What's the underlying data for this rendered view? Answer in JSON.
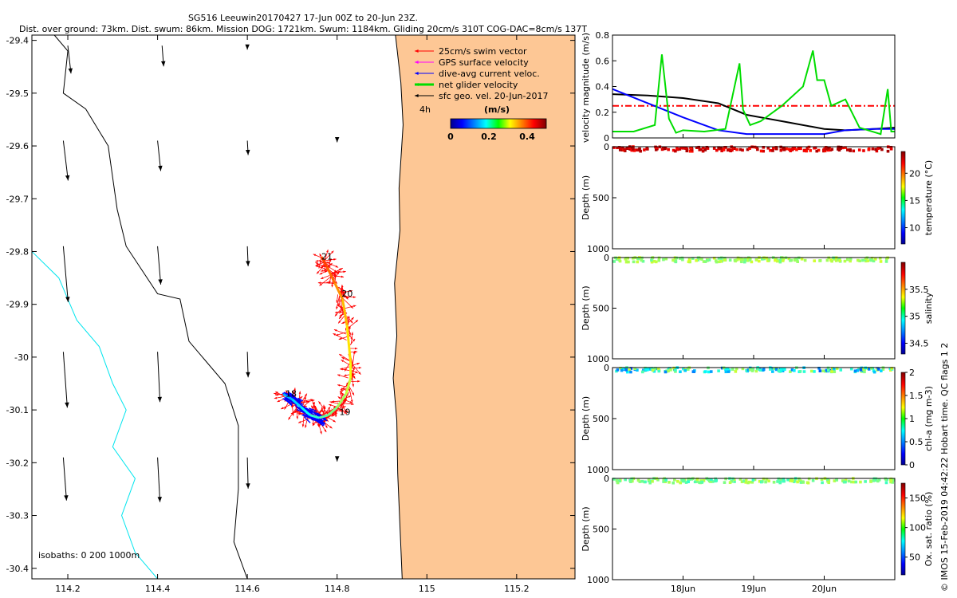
{
  "header": {
    "title": "SG516 Leeuwin20170427 17-Jun 00Z to 20-Jun 23Z.",
    "subtitle": "Dist. over ground: 73km. Dist. swum: 86km. Mission DOG: 1721km. Swum: 1184km. Gliding 20cm/s 310T COG-DAC=8cm/s 137T"
  },
  "credit": "© IMOS 15-Feb-2019 04:42:22 Hobart time. QC flags 1  2",
  "chart_data": [
    {
      "type": "scatter",
      "panel": "map",
      "xlim": [
        114.12,
        115.33
      ],
      "ylim": [
        -30.42,
        -29.39
      ],
      "xticks": [
        114.2,
        114.4,
        114.6,
        114.8,
        115,
        115.2
      ],
      "xtick_labels": [
        "114.2",
        "114.4",
        "114.6",
        "114.8",
        "115",
        "115.2"
      ],
      "yticks": [
        -29.4,
        -29.5,
        -29.6,
        -29.7,
        -29.8,
        -29.9,
        -30,
        -30.1,
        -30.2,
        -30.3,
        -30.4
      ],
      "ytick_labels": [
        "-29.4",
        "-29.5",
        "-29.6",
        "-29.7",
        "-29.8",
        "-29.9",
        "-30",
        "-30.1",
        "-30.2",
        "-30.3",
        "-30.4"
      ],
      "colors": {
        "land": "#fdc795",
        "isobath_0": "#000000",
        "isobath_200": "#000000",
        "isobath_1000": "#00e5ee",
        "swim": "#ff0000",
        "gps": "#ff00ff",
        "dac": "#0000ff",
        "net": "#00dd00"
      },
      "legend": {
        "position": "top-right",
        "entries": [
          "25cm/s swim vector",
          "GPS surface velocity",
          "dive-avg current veloc.",
          "net glider velocity",
          "sfc geo. vel. 20-Jun-2017"
        ],
        "scale_label": "4h"
      },
      "colorbar": {
        "label": "(m/s)",
        "ticks": [
          0,
          0.2,
          0.4
        ],
        "tick_labels": [
          "0",
          "0.2",
          "0.4"
        ],
        "range": [
          0,
          0.5
        ]
      },
      "isobath_label": "isobaths: 0   200  1000m",
      "day_labels": [
        {
          "text": "21",
          "lon": 114.765,
          "lat": -29.815
        },
        {
          "text": "20",
          "lon": 114.81,
          "lat": -29.885
        },
        {
          "text": "18",
          "lon": 114.685,
          "lat": -30.075
        },
        {
          "text": "19",
          "lon": 114.805,
          "lat": -30.11
        }
      ],
      "track": [
        [
          114.68,
          -30.07
        ],
        [
          114.7,
          -30.08
        ],
        [
          114.72,
          -30.095
        ],
        [
          114.74,
          -30.11
        ],
        [
          114.76,
          -30.115
        ],
        [
          114.78,
          -30.11
        ],
        [
          114.8,
          -30.095
        ],
        [
          114.82,
          -30.07
        ],
        [
          114.83,
          -30.04
        ],
        [
          114.83,
          -30.01
        ],
        [
          114.822,
          -29.94
        ],
        [
          114.812,
          -29.89
        ],
        [
          114.795,
          -29.86
        ],
        [
          114.778,
          -29.83
        ],
        [
          114.765,
          -29.81
        ]
      ],
      "geo_vectors": [
        {
          "lon": 114.2,
          "lat": -29.41,
          "u": 0.04,
          "v": -0.35
        },
        {
          "lon": 114.41,
          "lat": -29.41,
          "u": 0.02,
          "v": -0.26
        },
        {
          "lon": 114.6,
          "lat": -29.41,
          "u": 0.0,
          "v": -0.05
        },
        {
          "lon": 114.19,
          "lat": -29.59,
          "u": 0.06,
          "v": -0.5
        },
        {
          "lon": 114.4,
          "lat": -29.59,
          "u": 0.04,
          "v": -0.38
        },
        {
          "lon": 114.6,
          "lat": -29.59,
          "u": 0.01,
          "v": -0.18
        },
        {
          "lon": 114.8,
          "lat": -29.59,
          "u": 0.0,
          "v": -0.02
        },
        {
          "lon": 114.19,
          "lat": -29.79,
          "u": 0.06,
          "v": -0.7
        },
        {
          "lon": 114.4,
          "lat": -29.79,
          "u": 0.04,
          "v": -0.48
        },
        {
          "lon": 114.6,
          "lat": -29.79,
          "u": 0.01,
          "v": -0.25
        },
        {
          "lon": 114.19,
          "lat": -29.99,
          "u": 0.05,
          "v": -0.7
        },
        {
          "lon": 114.4,
          "lat": -29.99,
          "u": 0.03,
          "v": -0.63
        },
        {
          "lon": 114.6,
          "lat": -29.99,
          "u": 0.01,
          "v": -0.32
        },
        {
          "lon": 114.19,
          "lat": -30.19,
          "u": 0.04,
          "v": -0.54
        },
        {
          "lon": 114.4,
          "lat": -30.19,
          "u": 0.03,
          "v": -0.56
        },
        {
          "lon": 114.6,
          "lat": -30.19,
          "u": 0.01,
          "v": -0.39
        },
        {
          "lon": 114.8,
          "lat": -30.19,
          "u": 0.0,
          "v": -0.05
        }
      ]
    },
    {
      "type": "line",
      "panel": "velocity",
      "xlim": [
        17.0,
        21.0
      ],
      "ylim": [
        0,
        0.8
      ],
      "yticks": [
        0,
        0.2,
        0.4,
        0.6,
        0.8
      ],
      "ytick_labels": [
        "0",
        "0.2",
        "0.4",
        "0.6",
        "0.8"
      ],
      "ylabel": "velocity magnitude (m/s)",
      "series": [
        {
          "color": "#ff0000",
          "style": "dashdot",
          "x": [
            17.0,
            21.0
          ],
          "values": [
            0.25,
            0.25
          ]
        },
        {
          "color": "#000000",
          "x": [
            17.0,
            17.5,
            18.0,
            18.5,
            18.9,
            19.2,
            19.5,
            20.0,
            20.3,
            20.7,
            21.0
          ],
          "values": [
            0.34,
            0.33,
            0.31,
            0.27,
            0.18,
            0.15,
            0.12,
            0.07,
            0.06,
            0.07,
            0.08
          ]
        },
        {
          "color": "#0000ff",
          "x": [
            17.0,
            17.5,
            18.0,
            18.5,
            18.9,
            19.2,
            19.5,
            20.0,
            20.3,
            20.7,
            21.0
          ],
          "values": [
            0.38,
            0.27,
            0.16,
            0.06,
            0.03,
            0.03,
            0.03,
            0.03,
            0.06,
            0.07,
            0.07
          ]
        },
        {
          "color": "#00dd00",
          "x": [
            17.0,
            17.3,
            17.6,
            17.7,
            17.8,
            17.9,
            18.0,
            18.3,
            18.6,
            18.8,
            18.85,
            18.95,
            19.1,
            19.4,
            19.7,
            19.84,
            19.9,
            20.0,
            20.1,
            20.3,
            20.5,
            20.8,
            20.9,
            20.95,
            21.0
          ],
          "values": [
            0.05,
            0.05,
            0.1,
            0.65,
            0.15,
            0.04,
            0.06,
            0.05,
            0.07,
            0.58,
            0.22,
            0.1,
            0.13,
            0.25,
            0.4,
            0.68,
            0.45,
            0.45,
            0.25,
            0.3,
            0.08,
            0.03,
            0.38,
            0.05,
            0.05
          ]
        }
      ]
    },
    {
      "type": "scatter",
      "panel": "temperature",
      "xlim": [
        17.0,
        21.0
      ],
      "ylim": [
        1000,
        0
      ],
      "yticks": [
        0,
        500,
        1000
      ],
      "ytick_labels": [
        "0",
        "500",
        "1000"
      ],
      "ylabel": "Depth (m)",
      "colorbar": {
        "label": "temperature (°C)",
        "range": [
          7,
          24
        ],
        "ticks": [
          10,
          15,
          20
        ],
        "tick_labels": [
          "10",
          "15",
          "20"
        ]
      },
      "depth_range": [
        0,
        45
      ],
      "value_range": [
        21.5,
        23.5
      ]
    },
    {
      "type": "scatter",
      "panel": "salinity",
      "xlim": [
        17.0,
        21.0
      ],
      "ylim": [
        1000,
        0
      ],
      "yticks": [
        0,
        500,
        1000
      ],
      "ytick_labels": [
        "0",
        "500",
        "1000"
      ],
      "ylabel": "Depth (m)",
      "colorbar": {
        "label": "salinity",
        "range": [
          34.3,
          36.0
        ],
        "ticks": [
          34.5,
          35,
          35.5
        ],
        "tick_labels": [
          "34.5",
          "35",
          "35.5"
        ]
      },
      "depth_range": [
        0,
        45
      ],
      "value_range": [
        35.1,
        35.3
      ]
    },
    {
      "type": "scatter",
      "panel": "chla",
      "xlim": [
        17.0,
        21.0
      ],
      "ylim": [
        1000,
        0
      ],
      "yticks": [
        0,
        500,
        1000
      ],
      "ytick_labels": [
        "0",
        "500",
        "1000"
      ],
      "ylabel": "Depth (m)",
      "colorbar": {
        "label": "chl-a (mg m-3)",
        "range": [
          0,
          2
        ],
        "ticks": [
          0,
          0.5,
          1,
          1.5,
          2
        ],
        "tick_labels": [
          "0",
          "0.5",
          "1",
          "1.5",
          "2"
        ]
      },
      "depth_range": [
        0,
        45
      ],
      "value_range": [
        0.4,
        1.2
      ]
    },
    {
      "type": "scatter",
      "panel": "oxygen",
      "xlim": [
        17.0,
        21.0
      ],
      "ylim": [
        1000,
        0
      ],
      "yticks": [
        0,
        500,
        1000
      ],
      "ytick_labels": [
        "0",
        "500",
        "1000"
      ],
      "ylabel": "Depth (m)",
      "xticks": [
        18,
        19,
        20
      ],
      "xtick_labels": [
        "18Jun",
        "19Jun",
        "20Jun"
      ],
      "colorbar": {
        "label": "Ox. sat. ratio (%)",
        "range": [
          20,
          175
        ],
        "ticks": [
          50,
          100,
          150
        ],
        "tick_labels": [
          "50",
          "100",
          "150"
        ]
      },
      "depth_range": [
        0,
        45
      ],
      "value_range": [
        85,
        110
      ]
    }
  ]
}
